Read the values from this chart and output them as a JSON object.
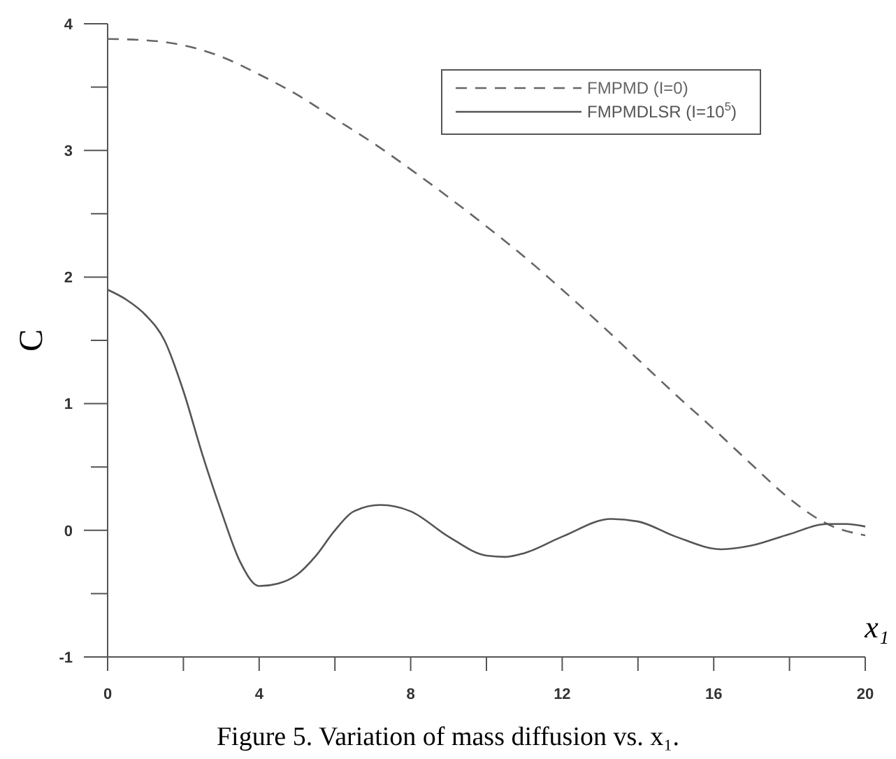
{
  "chart_data": {
    "type": "line",
    "xlabel": "x₁",
    "ylabel": "C",
    "annotations": [
      "Figure 5. Variation of mass diffusion vs. x₁."
    ],
    "xlim": [
      0,
      20
    ],
    "ylim": [
      -1,
      4
    ],
    "xticks": [
      0,
      {
        "value": 2,
        "label": null
      },
      4,
      {
        "value": 6,
        "label": null
      },
      8,
      {
        "value": 10,
        "label": null
      },
      12,
      {
        "value": 14,
        "label": null
      },
      16,
      {
        "value": 18,
        "label": null
      },
      20
    ],
    "yticks": [
      -1,
      {
        "value": -0.5,
        "label": null
      },
      0,
      {
        "value": 0.5,
        "label": null
      },
      1,
      {
        "value": 1.5,
        "label": null
      },
      2,
      {
        "value": 2.5,
        "label": null
      },
      3,
      {
        "value": 3.5,
        "label": null
      },
      4
    ],
    "grid": false,
    "legend": "top right",
    "marker": "none",
    "series": [
      {
        "name": "FMPMD (I=0)",
        "color": "#666666",
        "line_style": "dashed",
        "x": [
          0,
          1,
          2,
          3,
          4,
          5,
          6,
          7,
          8,
          9,
          10,
          11,
          12,
          13,
          14,
          15,
          16,
          17,
          18,
          19,
          20
        ],
        "values": [
          3.88,
          3.87,
          3.83,
          3.74,
          3.6,
          3.44,
          3.25,
          3.06,
          2.85,
          2.63,
          2.4,
          2.16,
          1.9,
          1.63,
          1.35,
          1.07,
          0.8,
          0.52,
          0.25,
          0.05,
          -0.04
        ]
      },
      {
        "name": "FMPMDLSR (I=10$^{5}$)",
        "color": "#555555",
        "line_style": "solid",
        "x": [
          0,
          0.5,
          1,
          1.5,
          2,
          2.5,
          3,
          3.5,
          4,
          4.5,
          5,
          5.5,
          6,
          6.5,
          7.2,
          8,
          9,
          10,
          10.5,
          11,
          12,
          13.3,
          14,
          15,
          16.2,
          17,
          18,
          19,
          19.5,
          20
        ],
        "values": [
          1.9,
          1.82,
          1.7,
          1.5,
          1.1,
          0.6,
          0.15,
          -0.25,
          -0.44,
          -0.42,
          -0.35,
          -0.2,
          0.0,
          0.15,
          0.2,
          0.15,
          -0.05,
          -0.2,
          -0.21,
          -0.18,
          -0.05,
          0.09,
          0.07,
          -0.05,
          -0.15,
          -0.12,
          -0.03,
          0.05,
          0.05,
          0.03
        ]
      }
    ]
  }
}
